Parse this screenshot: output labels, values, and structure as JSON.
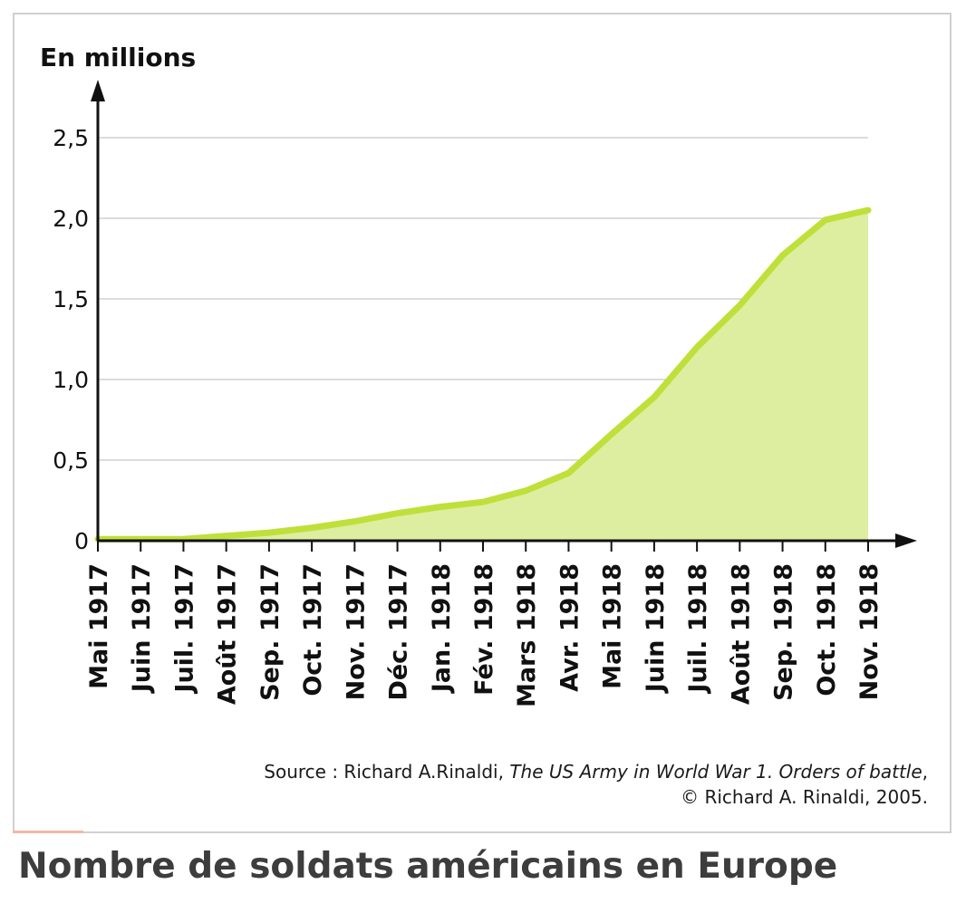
{
  "chart_data": {
    "type": "area",
    "title": "Nombre de soldats américains en Europe",
    "ylabel": "En millions",
    "xlabel": "",
    "ylim": [
      0,
      2.5
    ],
    "yticks": [
      0,
      0.5,
      1.0,
      1.5,
      2.0,
      2.5
    ],
    "ytick_labels": [
      "0",
      "0,5",
      "1,0",
      "1,5",
      "2,0",
      "2,5"
    ],
    "grid": true,
    "categories": [
      "Mai 1917",
      "Juin 1917",
      "Juil. 1917",
      "Août 1917",
      "Sep. 1917",
      "Oct. 1917",
      "Nov. 1917",
      "Déc. 1917",
      "Jan. 1918",
      "Fév. 1918",
      "Mars 1918",
      "Avr. 1918",
      "Mai 1918",
      "Juin 1918",
      "Juil. 1918",
      "Août 1918",
      "Sep. 1918",
      "Oct. 1918",
      "Nov. 1918"
    ],
    "values": [
      0.01,
      0.01,
      0.01,
      0.03,
      0.05,
      0.08,
      0.12,
      0.17,
      0.21,
      0.24,
      0.31,
      0.42,
      0.66,
      0.89,
      1.2,
      1.46,
      1.77,
      1.99,
      2.05
    ],
    "colors": {
      "line": "#bfe03a",
      "fill": "#deeea0",
      "grid": "#b9b9b9",
      "axis": "#111111"
    }
  },
  "source": {
    "prefix": "Source : Richard A.Rinaldi, ",
    "work": "The US Army in World War 1. Orders of battle",
    "suffix": ",",
    "copyright": "© Richard A. Rinaldi, 2005."
  },
  "caption": "Nombre de soldats américains en Europe"
}
